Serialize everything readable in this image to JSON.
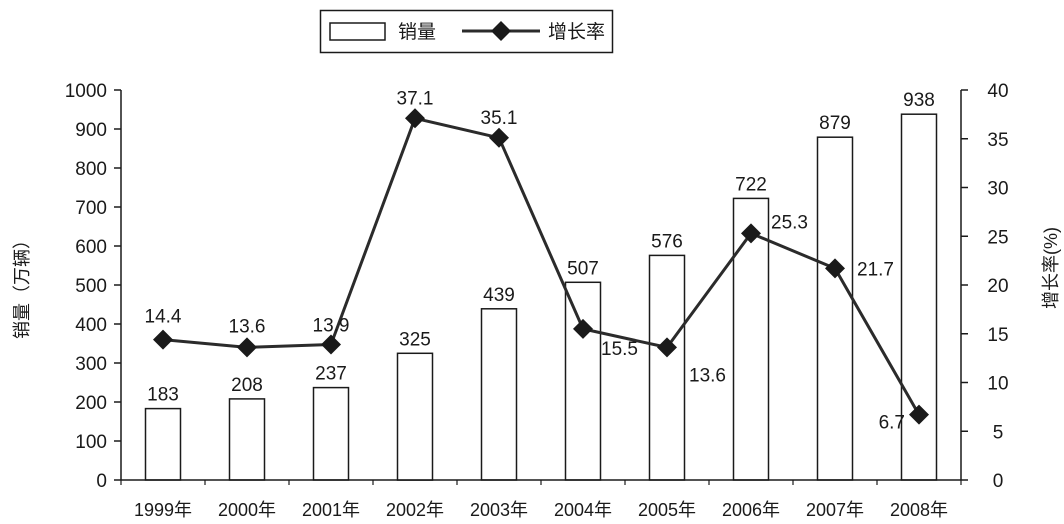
{
  "chart_data": {
    "type": "bar",
    "categories": [
      "1999年",
      "2000年",
      "2001年",
      "2002年",
      "2003年",
      "2004年",
      "2005年",
      "2006年",
      "2007年",
      "2008年"
    ],
    "series": [
      {
        "name": "销量",
        "type": "bar",
        "axis": "left",
        "values": [
          183,
          208,
          237,
          325,
          439,
          507,
          576,
          722,
          879,
          938
        ]
      },
      {
        "name": "增长率",
        "type": "line",
        "axis": "right",
        "marker": "diamond",
        "values": [
          14.4,
          13.6,
          13.9,
          37.1,
          35.1,
          15.5,
          13.6,
          25.3,
          21.7,
          6.7
        ]
      }
    ],
    "ylabel": "销量（万辆）",
    "y2label": "增长率(%)",
    "ylim": [
      0,
      1000
    ],
    "y2lim": [
      0,
      40
    ],
    "yticks": [
      0,
      100,
      200,
      300,
      400,
      500,
      600,
      700,
      800,
      900,
      1000
    ],
    "y2ticks": [
      0,
      5,
      10,
      15,
      20,
      25,
      30,
      35,
      40
    ],
    "grid": false,
    "data_labels": true,
    "legend": {
      "position": "top-center",
      "boxed": true
    }
  },
  "colors": {
    "background": "#ffffff",
    "bar_fill": "#ffffff",
    "bar_stroke": "#1a1a1a",
    "line": "#2b2b2b",
    "marker": "#1a1a1a",
    "axis": "#1a1a1a"
  }
}
